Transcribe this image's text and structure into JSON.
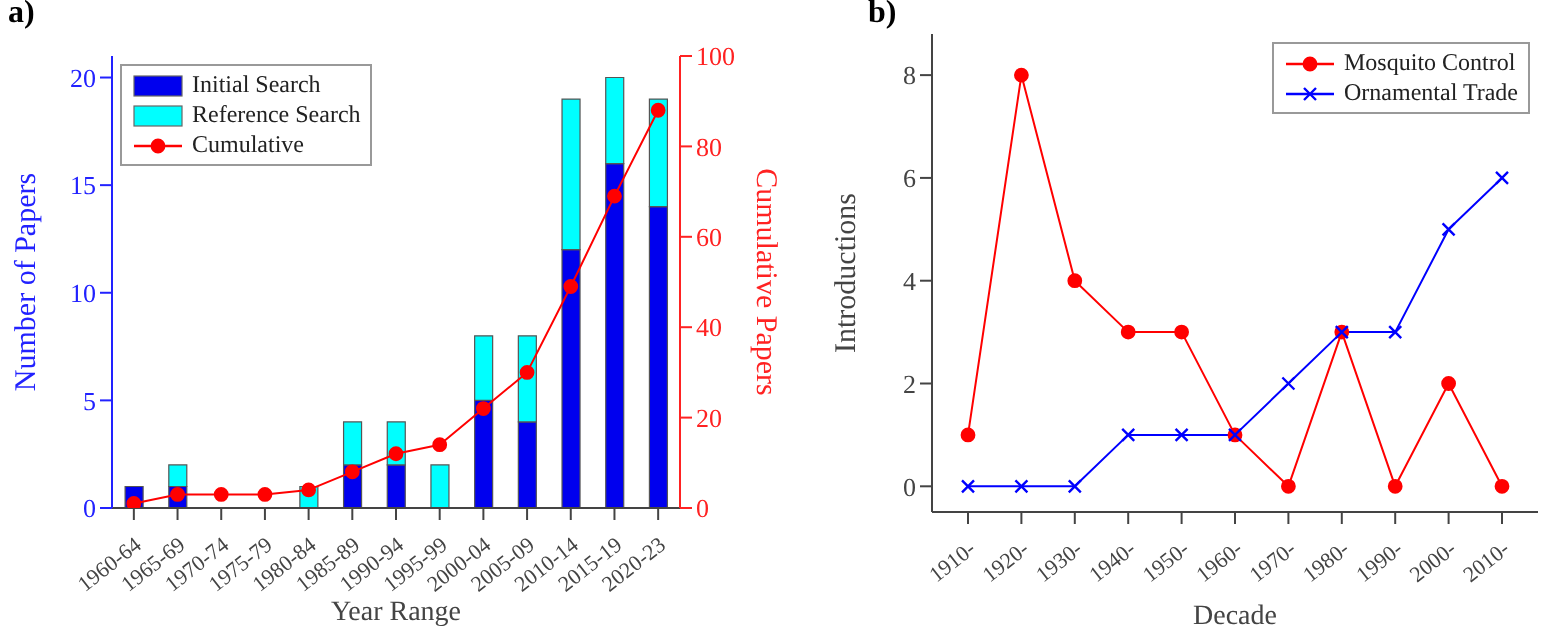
{
  "chart_data": [
    {
      "type": "bar",
      "title": "a)",
      "xlabel": "Year Range",
      "ylabel": "Number of Papers",
      "y2label": "Cumulative Papers",
      "categories": [
        "1960-64",
        "1965-69",
        "1970-74",
        "1975-79",
        "1980-84",
        "1985-89",
        "1990-94",
        "1995-99",
        "2000-04",
        "2005-09",
        "2010-14",
        "2015-19",
        "2020-23"
      ],
      "stacked": true,
      "series": [
        {
          "name": "Initial Search",
          "color": "#0000ee",
          "values": [
            1,
            1,
            0,
            0,
            0,
            2,
            2,
            0,
            5,
            4,
            12,
            16,
            14
          ]
        },
        {
          "name": "Reference Search",
          "color": "#00ffff",
          "values": [
            0,
            1,
            0,
            0,
            1,
            2,
            2,
            2,
            3,
            4,
            7,
            4,
            5
          ]
        },
        {
          "name": "Cumulative",
          "type": "line",
          "axis": "y2",
          "color": "#ff0000",
          "marker": "circle",
          "values": [
            1,
            3,
            3,
            3,
            4,
            8,
            12,
            14,
            22,
            30,
            49,
            69,
            88
          ]
        }
      ],
      "ylim": [
        0,
        21
      ],
      "yticks": [
        0,
        5,
        10,
        15,
        20
      ],
      "y2lim": [
        0,
        100
      ],
      "y2ticks": [
        0,
        20,
        40,
        60,
        80,
        100
      ],
      "legend": "top left"
    },
    {
      "type": "line",
      "title": "b)",
      "xlabel": "Decade",
      "ylabel": "Introductions",
      "categories": [
        "1910-",
        "1920-",
        "1930-",
        "1940-",
        "1950-",
        "1960-",
        "1970-",
        "1980-",
        "1990-",
        "2000-",
        "2010-"
      ],
      "series": [
        {
          "name": "Mosquito Control",
          "color": "#ff0000",
          "marker": "circle",
          "values": [
            1,
            8,
            4,
            3,
            3,
            1,
            0,
            3,
            0,
            2,
            0
          ]
        },
        {
          "name": "Ornamental Trade",
          "color": "#0000ff",
          "marker": "cross",
          "values": [
            0,
            0,
            0,
            1,
            1,
            1,
            2,
            3,
            3,
            5,
            6
          ]
        }
      ],
      "ylim": [
        -0.5,
        8.8
      ],
      "yticks": [
        0,
        2,
        4,
        6,
        8
      ],
      "legend": "top right"
    }
  ]
}
